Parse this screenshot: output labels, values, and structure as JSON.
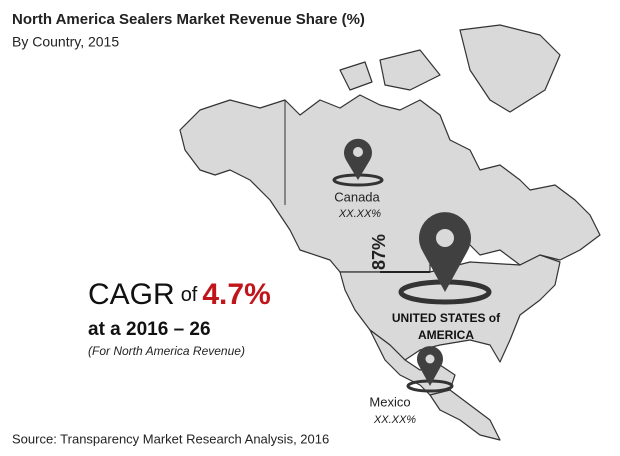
{
  "header": {
    "title": "North America Sealers Market Revenue Share (%)",
    "subtitle": "By Country, 2015"
  },
  "markers": [
    {
      "label": "Canada",
      "value": "XX.XX%"
    },
    {
      "label": "UNITED STATES of",
      "label_line2": "AMERICA",
      "value": "87%"
    },
    {
      "label": "Mexico",
      "value": "XX.XX%"
    }
  ],
  "cagr": {
    "prefix": "CAGR",
    "of": "of",
    "rate": "4.7%",
    "period": "at a 2016 – 26",
    "note": "(For North America Revenue)"
  },
  "source": "Source: Transparency Market Research Analysis, 2016"
}
